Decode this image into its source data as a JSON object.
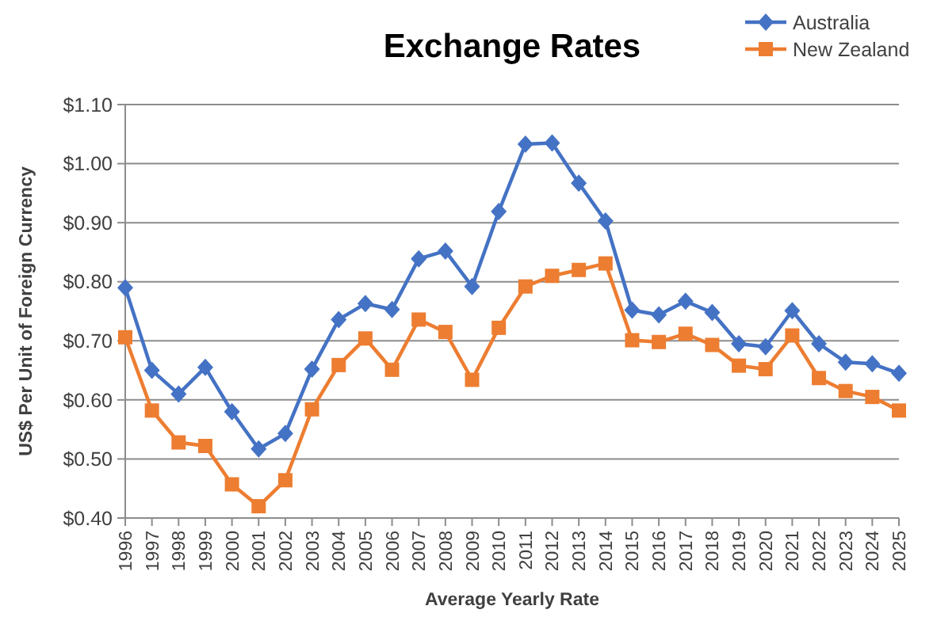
{
  "chart_data": {
    "type": "line",
    "title": "Exchange Rates",
    "xlabel": "Average Yearly Rate",
    "ylabel": "US$ Per Unit of Foreign Currency",
    "categories": [
      "1996",
      "1997",
      "1998",
      "1999",
      "2000",
      "2001",
      "2002",
      "2003",
      "2004",
      "2005",
      "2006",
      "2007",
      "2008",
      "2009",
      "2010",
      "2011",
      "2012",
      "2013",
      "2014",
      "2015",
      "2016",
      "2017",
      "2018",
      "2019",
      "2020",
      "2021",
      "2022",
      "2023",
      "2024",
      "2025"
    ],
    "series": [
      {
        "name": "Australia",
        "color": "#4472c4",
        "marker": "diamond",
        "values": [
          0.79,
          0.65,
          0.61,
          0.655,
          0.58,
          0.517,
          0.543,
          0.652,
          0.736,
          0.763,
          0.753,
          0.839,
          0.852,
          0.792,
          0.919,
          1.033,
          1.035,
          0.967,
          0.903,
          0.752,
          0.744,
          0.767,
          0.748,
          0.695,
          0.69,
          0.751,
          0.695,
          0.664,
          0.661,
          0.645
        ]
      },
      {
        "name": "New Zealand",
        "color": "#ed7d31",
        "marker": "square",
        "values": [
          0.706,
          0.582,
          0.528,
          0.522,
          0.457,
          0.42,
          0.464,
          0.584,
          0.659,
          0.704,
          0.651,
          0.736,
          0.715,
          0.634,
          0.722,
          0.792,
          0.81,
          0.82,
          0.831,
          0.701,
          0.698,
          0.712,
          0.693,
          0.658,
          0.652,
          0.709,
          0.637,
          0.615,
          0.605,
          0.582
        ]
      }
    ],
    "ylim": [
      0.4,
      1.1
    ],
    "yticks": [
      {
        "value": 0.4,
        "label": "$0.40"
      },
      {
        "value": 0.5,
        "label": "$0.50"
      },
      {
        "value": 0.6,
        "label": "$0.60"
      },
      {
        "value": 0.7,
        "label": "$0.70"
      },
      {
        "value": 0.8,
        "label": "$0.80"
      },
      {
        "value": 0.9,
        "label": "$0.90"
      },
      {
        "value": 1.0,
        "label": "$1.00"
      },
      {
        "value": 1.1,
        "label": "$1.10"
      }
    ],
    "grid": "y",
    "legend": "top right",
    "line_style": "solid"
  }
}
